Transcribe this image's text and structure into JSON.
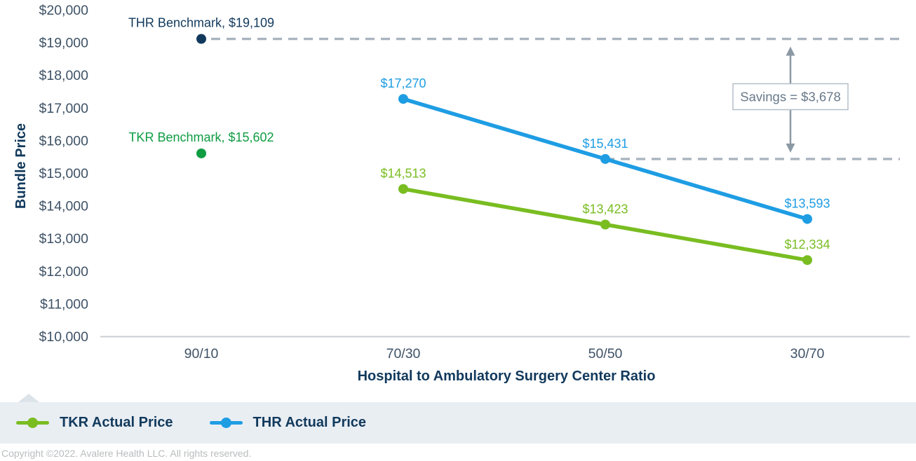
{
  "chart_data": {
    "type": "line",
    "title": "",
    "xlabel": "Hospital to Ambulatory Surgery Center Ratio",
    "ylabel": "Bundle Price",
    "categories": [
      "90/10",
      "70/30",
      "50/50",
      "30/70"
    ],
    "ylim": [
      10000,
      20000
    ],
    "y_tick_step": 1000,
    "y_tick_labels": [
      "$10,000",
      "$11,000",
      "$12,000",
      "$13,000",
      "$14,000",
      "$15,000",
      "$16,000",
      "$17,000",
      "$18,000",
      "$19,000",
      "$20,000"
    ],
    "grid": false,
    "legend_position": "bottom",
    "series": [
      {
        "name": "TKR Actual Price",
        "color": "#79bd21",
        "categories": [
          "70/30",
          "50/50",
          "30/70"
        ],
        "values": [
          14513,
          13423,
          12334
        ],
        "point_labels": [
          "$14,513",
          "$13,423",
          "$12,334"
        ]
      },
      {
        "name": "THR Actual Price",
        "color": "#1e9de3",
        "categories": [
          "70/30",
          "50/50",
          "30/70"
        ],
        "values": [
          17270,
          15431,
          13593
        ],
        "point_labels": [
          "$17,270",
          "$15,431",
          "$13,593"
        ]
      }
    ],
    "benchmarks": [
      {
        "name": "THR Benchmark",
        "label": "THR Benchmark, $19,109",
        "category": "90/10",
        "value": 19109,
        "color": "#11395c",
        "dashed_line_to_right": true
      },
      {
        "name": "TKR Benchmark",
        "label": "TKR Benchmark, $15,602",
        "category": "90/10",
        "value": 15602,
        "color": "#0f9c43",
        "dashed_line_to_right": false
      }
    ],
    "extra_dashed_line": {
      "start_category": "50/50",
      "value": 15431
    },
    "annotation": {
      "label": "Savings = $3,678",
      "between_values": [
        19109,
        15431
      ]
    }
  },
  "legend": {
    "items": [
      {
        "label": "TKR Actual Price",
        "color": "#79bd21"
      },
      {
        "label": "THR Actual Price",
        "color": "#1e9de3"
      }
    ]
  },
  "footer": {
    "copyright": "Copyright ©2022. Avalere Health LLC. All rights reserved."
  },
  "colors": {
    "tick_text": "#3e5266",
    "navy": "#11395c",
    "dashed_line": "#a9b4bf",
    "arrow": "#8b99a5",
    "box_border": "#b4bfc8",
    "box_fill": "#ffffff",
    "box_text": "#68798a",
    "axis_line": "#c9ced3",
    "legend_bg": "#e9eef3",
    "copyright_text": "#b9bcbe"
  }
}
